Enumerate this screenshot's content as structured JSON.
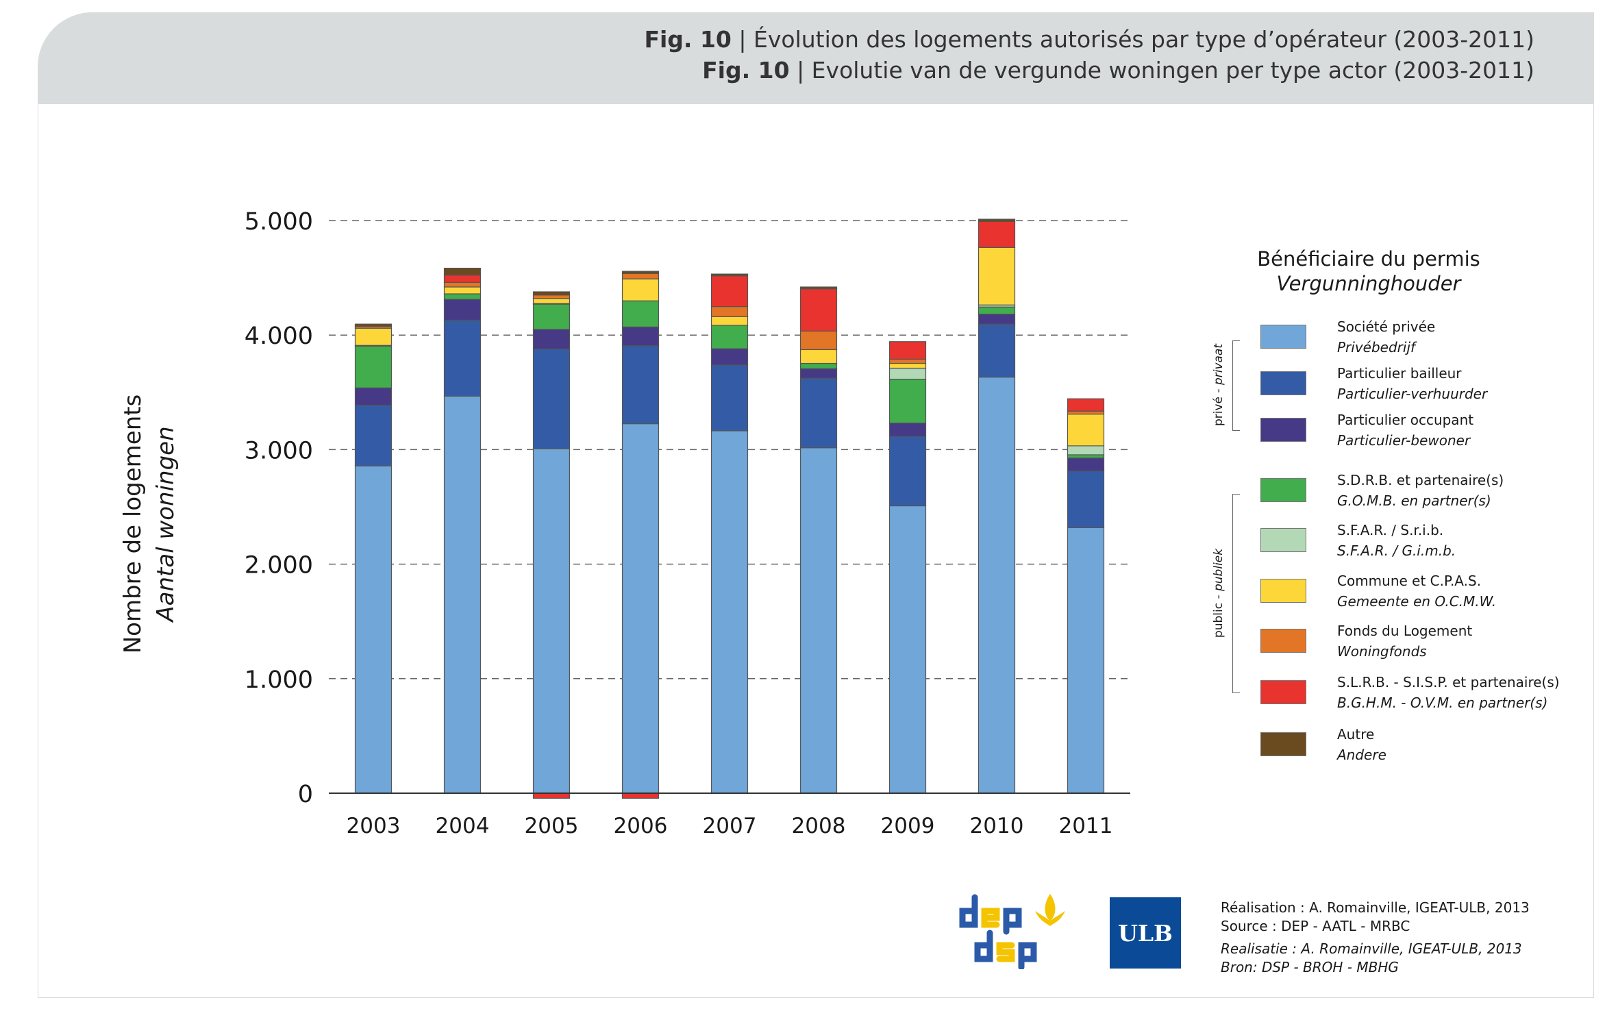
{
  "header": {
    "fig_label": "Fig. 10",
    "title_fr": "| Évolution des logements autorisés par type d’opérateur (2003-2011)",
    "title_nl": "| Evolutie van de vergunde woningen per type actor (2003-2011)"
  },
  "axis": {
    "ylabel_fr": "Nombre de logements",
    "ylabel_nl": "Aantal woningen"
  },
  "legend": {
    "title_fr": "Bénéficiaire du permis",
    "title_nl": "Vergunninghouder",
    "group_private_fr": "privé - ",
    "group_private_nl": "privaat",
    "group_public_fr": "public - ",
    "group_public_nl": "publiek"
  },
  "credits": {
    "line1": "Réalisation : A. Romainville, IGEAT-ULB, 2013",
    "line2": "Source : DEP - AATL - MRBC",
    "line3": "Realisatie : A. Romainville, IGEAT-ULB, 2013",
    "line4": "Bron: DSP - BROH - MBHG",
    "logo_ulb": "ULB",
    "logo_dep": "dep dsp"
  },
  "chart_data": {
    "type": "bar",
    "stacked": true,
    "title": "Évolution des logements autorisés par type d’opérateur (2003-2011)",
    "xlabel": "",
    "ylabel": "Nombre de logements / Aantal woningen",
    "ylim": [
      0,
      5000
    ],
    "yticks": [
      0,
      1000,
      2000,
      3000,
      4000,
      5000
    ],
    "ytick_labels": [
      "0",
      "1.000",
      "2.000",
      "3.000",
      "4.000",
      "5.000"
    ],
    "grid": "horizontal dashed",
    "legend_position": "right",
    "categories": [
      "2003",
      "2004",
      "2005",
      "2006",
      "2007",
      "2008",
      "2009",
      "2010",
      "2011"
    ],
    "series": [
      {
        "name": "Société privée",
        "name_nl": "Privébedrijf",
        "color": "#71a6d8",
        "values": [
          2858,
          3467,
          3008,
          3226,
          3164,
          3016,
          2509,
          3633,
          2319
        ]
      },
      {
        "name": "Particulier bailleur",
        "name_nl": "Particulier-verhuurder",
        "color": "#345ca6",
        "values": [
          529,
          663,
          870,
          681,
          575,
          607,
          607,
          462,
          494
        ]
      },
      {
        "name": "Particulier occupant",
        "name_nl": "Particulier-bewoner",
        "color": "#463a87",
        "values": [
          152,
          182,
          172,
          164,
          142,
          84,
          116,
          88,
          114
        ]
      },
      {
        "name": "S.D.R.B. et partenaire(s)",
        "name_nl": "G.O.M.B. en partner(s)",
        "color": "#42ad4c",
        "values": [
          365,
          48,
          220,
          228,
          204,
          46,
          383,
          62,
          28
        ]
      },
      {
        "name": "S.F.A.R. / S.r.i.b.",
        "name_nl": "S.F.A.R. / G.i.m.b.",
        "color": "#b2d8b5",
        "values": [
          6,
          0,
          6,
          0,
          0,
          0,
          96,
          18,
          78
        ]
      },
      {
        "name": "Commune et C.P.A.S.",
        "name_nl": "Gemeente en O.C.M.W.",
        "color": "#fdd73a",
        "values": [
          150,
          60,
          44,
          192,
          76,
          120,
          42,
          502,
          277
        ]
      },
      {
        "name": "Fonds du Logement",
        "name_nl": "Woningfonds",
        "color": "#e37626",
        "values": [
          16,
          40,
          30,
          46,
          88,
          162,
          36,
          0,
          26
        ]
      },
      {
        "name": "S.L.R.B. - S.I.S.P. et partenaire(s)",
        "name_nl": "B.G.H.M. - O.V.M. en partner(s)",
        "color": "#e8332f",
        "values": [
          0,
          64,
          -45,
          -45,
          268,
          369,
          154,
          227,
          108
        ]
      },
      {
        "name": "Autre",
        "name_nl": "Andere",
        "color": "#6a4a1f",
        "values": [
          20,
          60,
          28,
          20,
          16,
          16,
          0,
          20,
          0
        ]
      }
    ]
  }
}
